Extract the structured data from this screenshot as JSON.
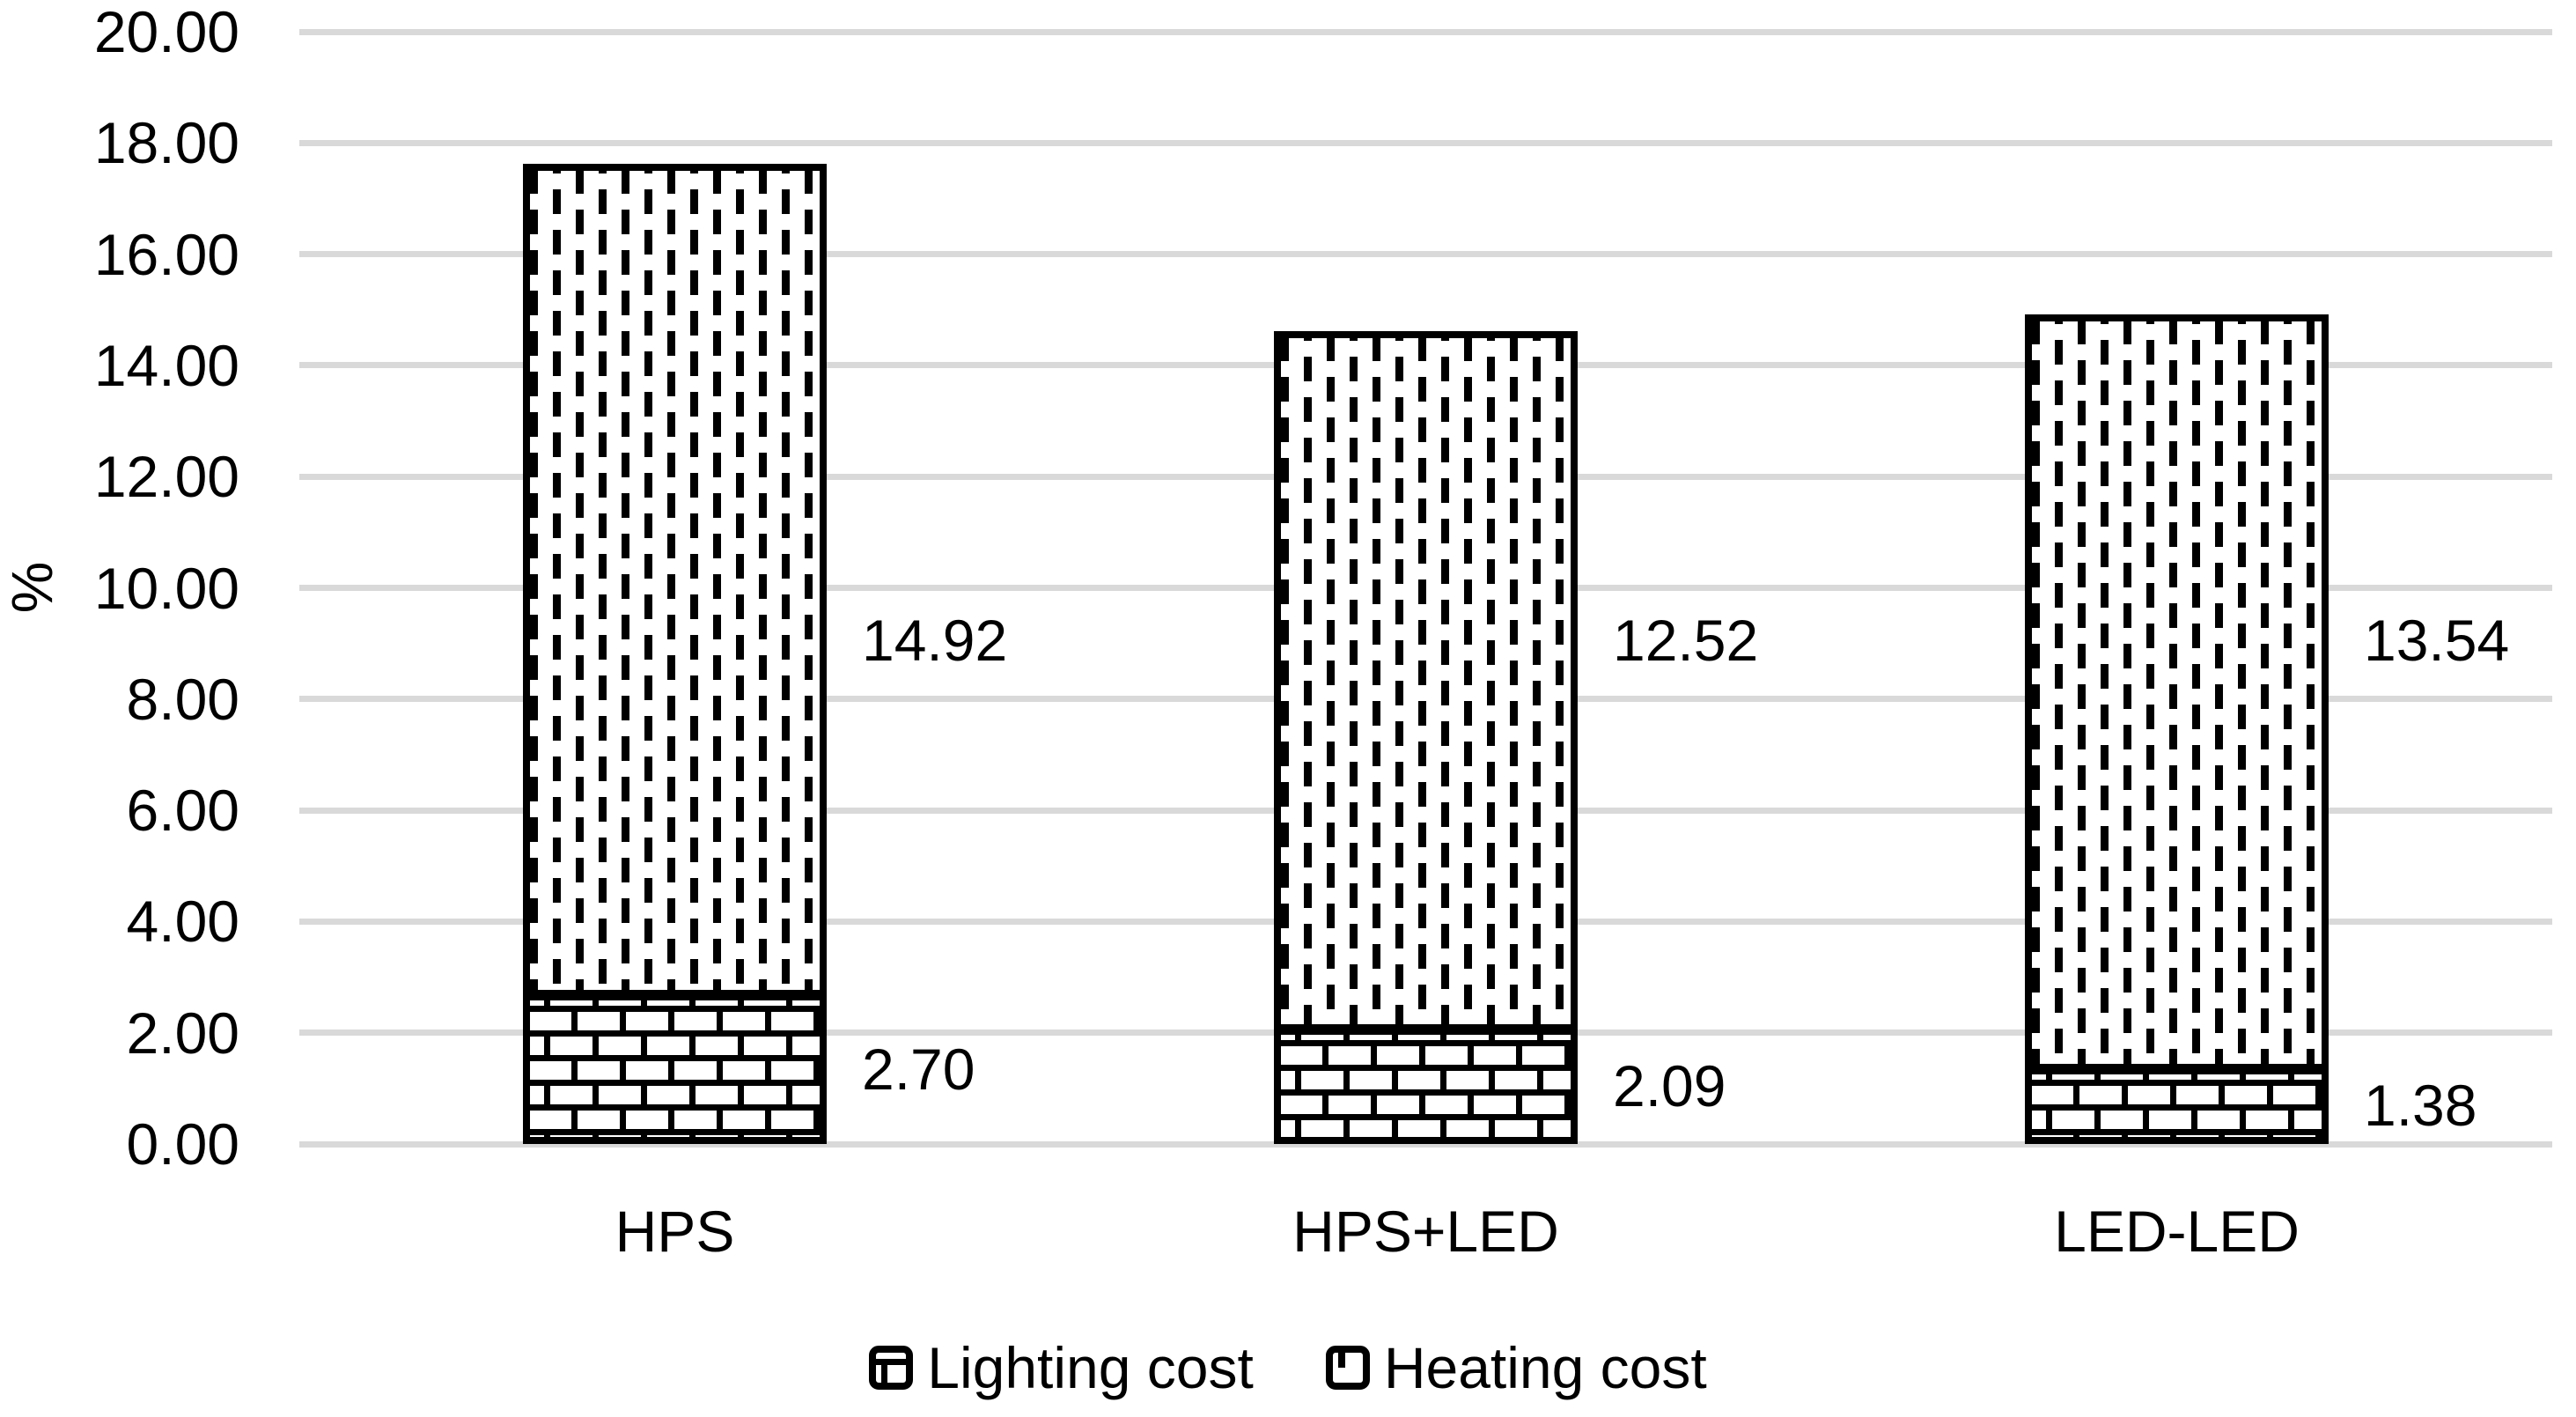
{
  "chart_data": {
    "type": "bar",
    "stacked": true,
    "orientation": "vertical",
    "categories": [
      "HPS",
      "HPS+LED",
      "LED-LED"
    ],
    "series": [
      {
        "name": "Lighting cost",
        "pattern": "brick",
        "values": [
          2.7,
          2.09,
          1.38
        ],
        "labels": [
          "2.70",
          "2.09",
          "1.38"
        ]
      },
      {
        "name": "Heating cost",
        "pattern": "vertical-dash",
        "values": [
          14.92,
          12.52,
          13.54
        ],
        "labels": [
          "14.92",
          "12.52",
          "13.54"
        ]
      }
    ],
    "totals": [
      17.62,
      14.61,
      14.92
    ],
    "title": "",
    "xlabel": "",
    "ylabel": "%",
    "ylim": [
      0,
      20
    ],
    "ytick_step": 2,
    "ytick_labels": [
      "0.00",
      "2.00",
      "4.00",
      "6.00",
      "8.00",
      "10.00",
      "12.00",
      "14.00",
      "16.00",
      "18.00",
      "20.00"
    ],
    "grid": true,
    "gridline_color": "#D9D9D9",
    "bar_fill": "#FFFFFF",
    "bar_stroke": "#000000",
    "text_color": "#000000",
    "legend_position": "bottom"
  }
}
